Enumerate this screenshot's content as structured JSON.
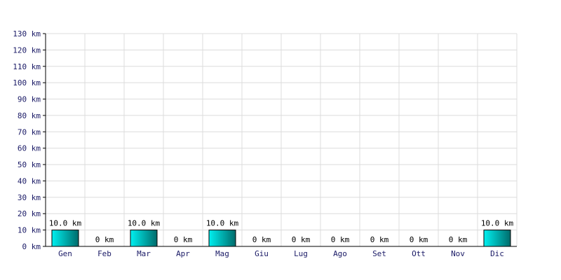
{
  "chart_data": {
    "type": "bar",
    "categories": [
      "Gen",
      "Feb",
      "Mar",
      "Apr",
      "Mag",
      "Giu",
      "Lug",
      "Ago",
      "Set",
      "Ott",
      "Nov",
      "Dic"
    ],
    "values": [
      10,
      0,
      10,
      0,
      10,
      0,
      0,
      0,
      0,
      0,
      0,
      10
    ],
    "data_labels": [
      "10.0 km",
      "0 km",
      "10.0 km",
      "0 km",
      "10.0 km",
      "0 km",
      "0 km",
      "0 km",
      "0 km",
      "0 km",
      "0 km",
      "10.0 km"
    ],
    "y_tick_labels": [
      "0 km",
      "10 km",
      "20 km",
      "30 km",
      "40 km",
      "50 km",
      "60 km",
      "70 km",
      "80 km",
      "90 km",
      "100 km",
      "110 km",
      "120 km",
      "130 km"
    ],
    "ylim": [
      0,
      130
    ],
    "y_step": 10,
    "grid": true,
    "title": "",
    "xlabel": "",
    "ylabel": "",
    "colors": {
      "bar_light": "#00f0f0",
      "bar_dark": "#006b6b",
      "bar_stroke": "#000000",
      "grid": "#dcdcdc",
      "axis": "#000000",
      "tick_text": "#1a1a66"
    }
  }
}
